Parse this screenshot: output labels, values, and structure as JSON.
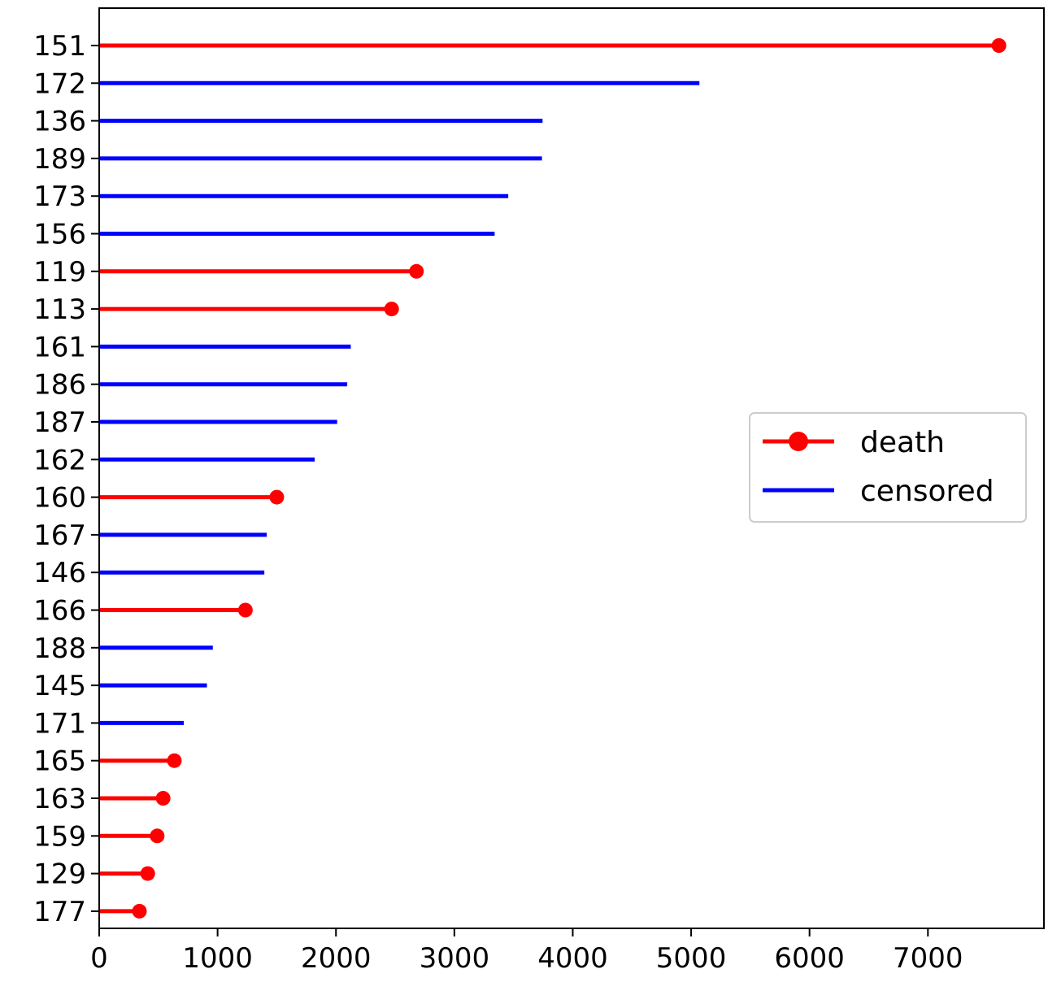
{
  "chart_data": {
    "type": "lollipop",
    "title": "",
    "xlabel": "",
    "ylabel": "",
    "xlim": [
      0,
      7980
    ],
    "xticks": [
      0,
      1000,
      2000,
      3000,
      4000,
      5000,
      6000,
      7000
    ],
    "grid": false,
    "legend": {
      "placement": "center-right",
      "entries": [
        {
          "key": "death",
          "label": "death",
          "color": "#ff0000",
          "marker": "circle"
        },
        {
          "key": "censored",
          "label": "censored",
          "color": "#0000ff",
          "marker": "none"
        }
      ]
    },
    "colors": {
      "death": "#ff0000",
      "censored": "#0000ff"
    },
    "records": [
      {
        "id": "151",
        "time": 7600,
        "status": "death"
      },
      {
        "id": "172",
        "time": 5070,
        "status": "censored"
      },
      {
        "id": "136",
        "time": 3745,
        "status": "censored"
      },
      {
        "id": "189",
        "time": 3740,
        "status": "censored"
      },
      {
        "id": "173",
        "time": 3455,
        "status": "censored"
      },
      {
        "id": "156",
        "time": 3340,
        "status": "censored"
      },
      {
        "id": "119",
        "time": 2680,
        "status": "death"
      },
      {
        "id": "113",
        "time": 2470,
        "status": "death"
      },
      {
        "id": "161",
        "time": 2125,
        "status": "censored"
      },
      {
        "id": "186",
        "time": 2095,
        "status": "censored"
      },
      {
        "id": "187",
        "time": 2010,
        "status": "censored"
      },
      {
        "id": "162",
        "time": 1820,
        "status": "censored"
      },
      {
        "id": "160",
        "time": 1500,
        "status": "death"
      },
      {
        "id": "167",
        "time": 1415,
        "status": "censored"
      },
      {
        "id": "146",
        "time": 1395,
        "status": "censored"
      },
      {
        "id": "166",
        "time": 1235,
        "status": "death"
      },
      {
        "id": "188",
        "time": 960,
        "status": "censored"
      },
      {
        "id": "145",
        "time": 910,
        "status": "censored"
      },
      {
        "id": "171",
        "time": 715,
        "status": "censored"
      },
      {
        "id": "165",
        "time": 635,
        "status": "death"
      },
      {
        "id": "163",
        "time": 540,
        "status": "death"
      },
      {
        "id": "159",
        "time": 490,
        "status": "death"
      },
      {
        "id": "129",
        "time": 410,
        "status": "death"
      },
      {
        "id": "177",
        "time": 340,
        "status": "death"
      }
    ]
  }
}
